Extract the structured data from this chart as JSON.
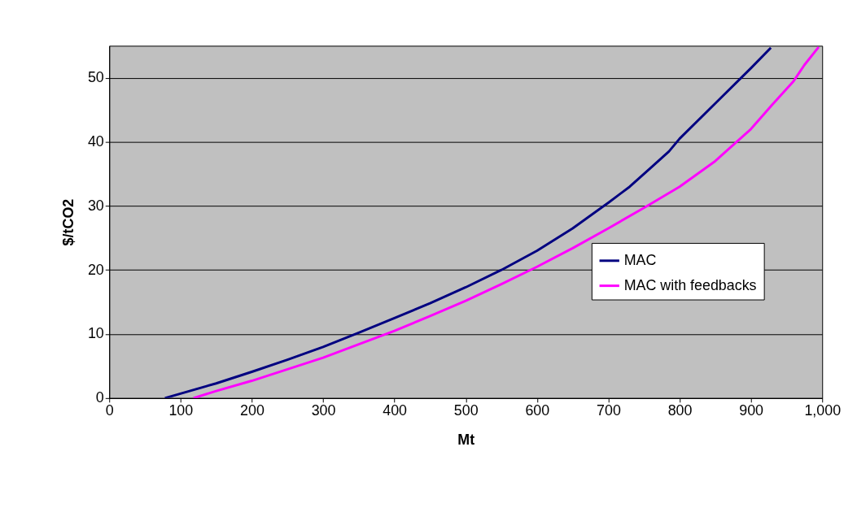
{
  "chart_data": {
    "type": "line",
    "xlabel": "Mt",
    "ylabel": "$/tCO2",
    "xlim": [
      0,
      1000
    ],
    "ylim": [
      0,
      55
    ],
    "xticks": [
      0,
      100,
      200,
      300,
      400,
      500,
      600,
      700,
      800,
      900,
      {
        "value": 1000,
        "label": "1,000"
      }
    ],
    "yticks": [
      0,
      10,
      20,
      30,
      40,
      50
    ],
    "grid": "y",
    "legend": "right",
    "marker": "none",
    "line_style": "solid",
    "series": [
      {
        "name": "MAC",
        "color": "#000080",
        "x": [
          78,
          150,
          200,
          250,
          300,
          350,
          400,
          450,
          500,
          550,
          600,
          650,
          700,
          730,
          760,
          785,
          800,
          850,
          900,
          928
        ],
        "values": [
          0,
          2.3,
          4.1,
          6.0,
          8.0,
          10.2,
          12.5,
          14.8,
          17.3,
          20.0,
          23.0,
          26.5,
          30.5,
          33.0,
          36.0,
          38.5,
          40.5,
          46.0,
          51.5,
          54.7
        ]
      },
      {
        "name": "MAC with feedbacks",
        "color": "#ff00ff",
        "x": [
          118,
          150,
          200,
          250,
          300,
          350,
          400,
          450,
          500,
          550,
          600,
          650,
          700,
          750,
          800,
          850,
          870,
          900,
          930,
          960,
          975,
          995
        ],
        "values": [
          0,
          1.1,
          2.7,
          4.5,
          6.3,
          8.4,
          10.5,
          12.8,
          15.2,
          17.8,
          20.5,
          23.4,
          26.5,
          29.7,
          33.0,
          37.0,
          39.0,
          42.0,
          45.8,
          49.5,
          52.0,
          54.8
        ]
      }
    ]
  }
}
